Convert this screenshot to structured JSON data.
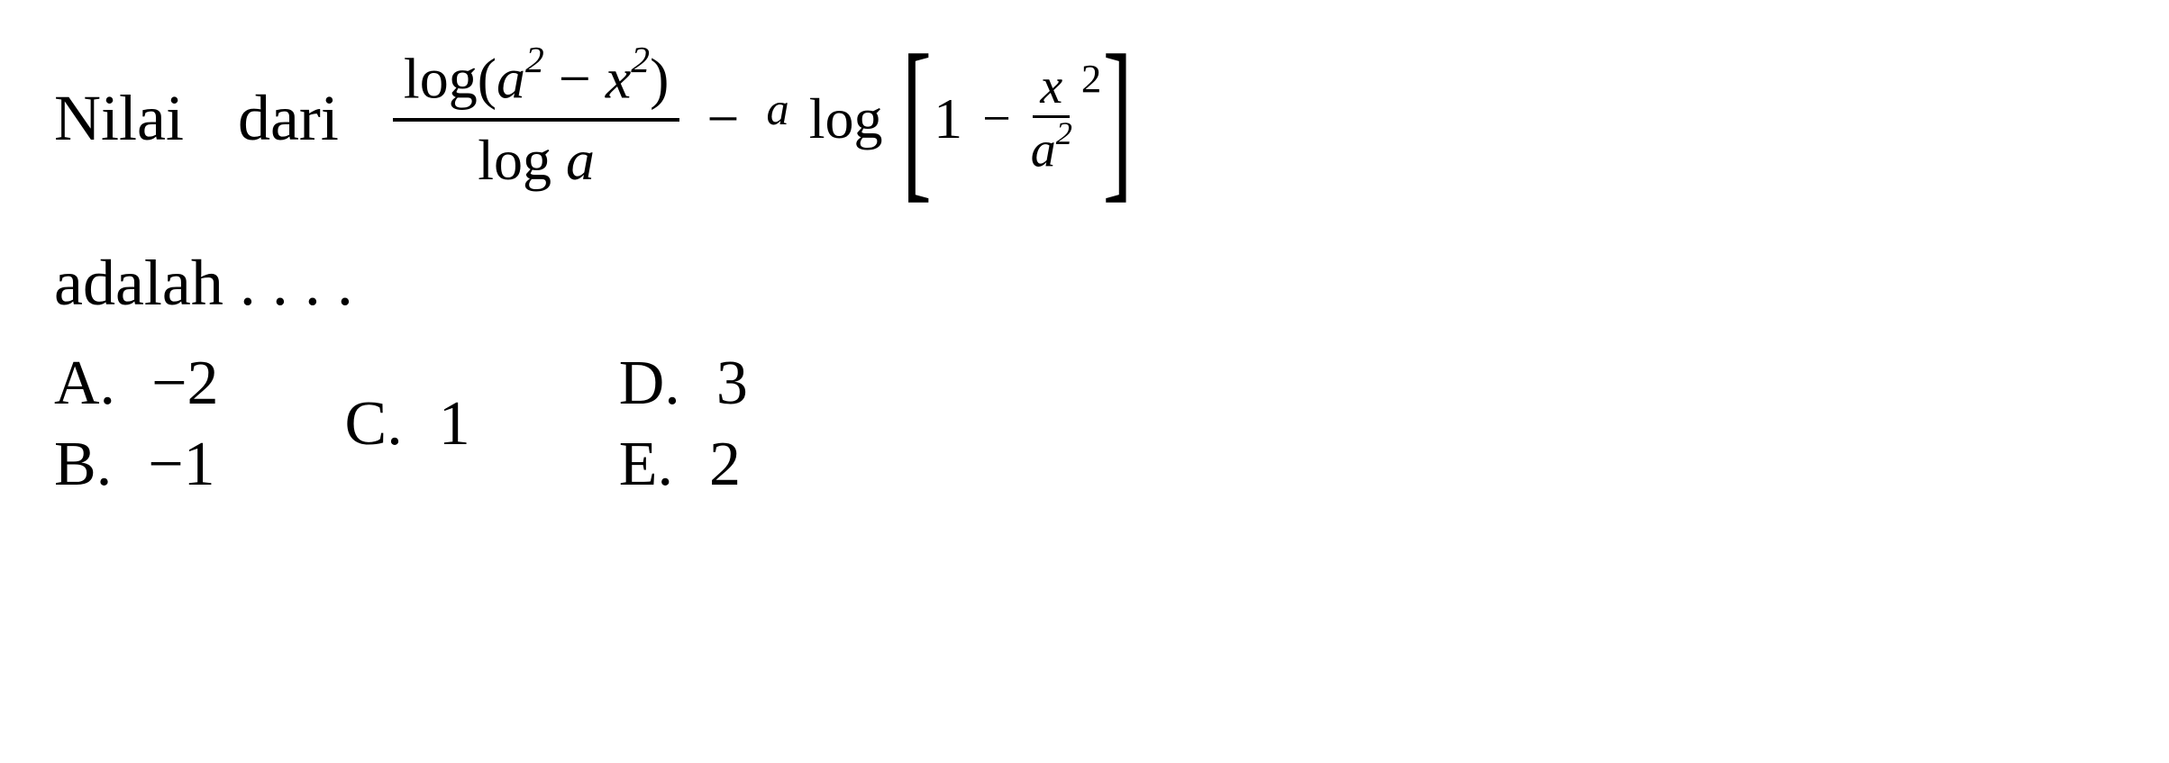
{
  "question": {
    "word1": "Nilai",
    "word2": "dari",
    "word3": "adalah",
    "dots": ". . . .",
    "frac1_top_log": "log(",
    "frac1_top_a": "a",
    "frac1_top_exp1": "2",
    "frac1_top_minus": " − ",
    "frac1_top_x": "x",
    "frac1_top_exp2": "2",
    "frac1_top_close": ")",
    "frac1_bot_log": "log ",
    "frac1_bot_a": "a",
    "minus1": "−",
    "presup_a": "a",
    "log2": "log",
    "lbracket": "[",
    "inner_1": "1",
    "inner_minus": "−",
    "innerfrac_top": "x",
    "innerfrac_bot_a": "a",
    "innerfrac_bot_exp": "2",
    "outer_exp": "2",
    "rbracket": "]"
  },
  "options": {
    "A": {
      "label": "A.",
      "value": "−2"
    },
    "B": {
      "label": "B.",
      "value": "−1"
    },
    "C": {
      "label": "C.",
      "value": "1"
    },
    "D": {
      "label": "D.",
      "value": "3"
    },
    "E": {
      "label": "E.",
      "value": "2"
    }
  },
  "colors": {
    "text": "#000000",
    "background": "#ffffff"
  },
  "fonts": {
    "body_size_pt": 54,
    "math_size_pt": 48,
    "family": "Georgia, serif"
  }
}
